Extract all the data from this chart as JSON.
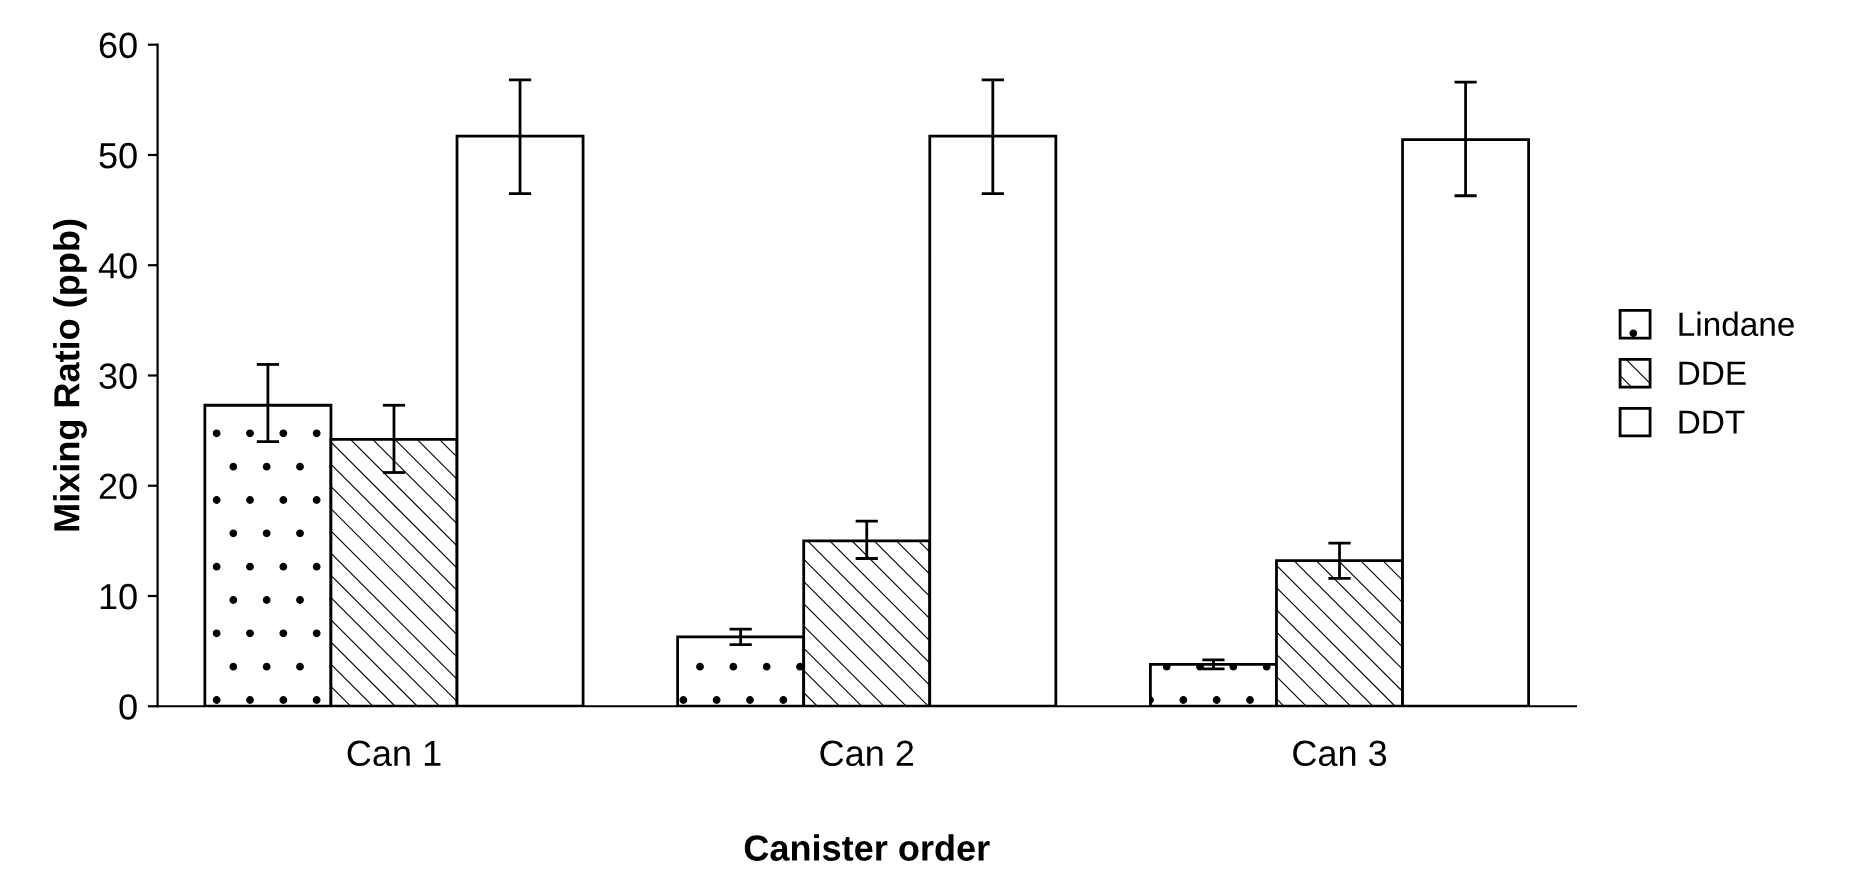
{
  "chart_data": {
    "type": "bar",
    "xlabel": "Canister order",
    "ylabel": "Mixing Ratio (ppb)",
    "categories": [
      "Can 1",
      "Can 2",
      "Can 3"
    ],
    "series": [
      {
        "name": "Lindane",
        "color": "#000000",
        "values": [
          27.3,
          6.3,
          3.8
        ],
        "errors": [
          [
            24.0,
            31.0
          ],
          [
            5.6,
            7.0
          ],
          [
            3.4,
            4.2
          ]
        ]
      },
      {
        "name": "DDE",
        "color": "#000000",
        "values": [
          24.2,
          15.0,
          13.2
        ],
        "errors": [
          [
            21.2,
            27.3
          ],
          [
            13.4,
            16.8
          ],
          [
            11.6,
            14.8
          ]
        ]
      },
      {
        "name": "DDT",
        "color": "#ffffff",
        "values": [
          51.7,
          51.7,
          51.4
        ],
        "errors": [
          [
            46.5,
            56.8
          ],
          [
            46.5,
            56.8
          ],
          [
            46.3,
            56.6
          ]
        ]
      }
    ],
    "ylim": [
      0,
      60
    ],
    "yticks": [
      0,
      10,
      20,
      30,
      40,
      50,
      60
    ],
    "grid": false,
    "legend": "right"
  }
}
